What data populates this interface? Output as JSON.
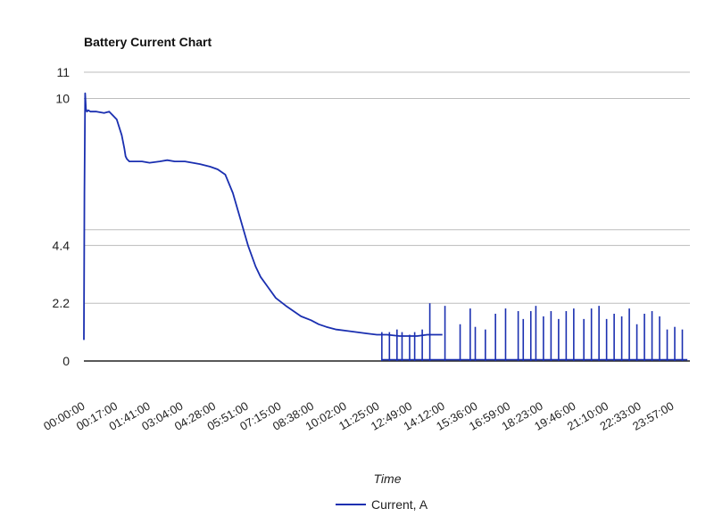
{
  "chart_data": {
    "type": "line",
    "title": "Battery Current Chart",
    "xlabel": "Time",
    "ylabel": "",
    "ylim": [
      0,
      11
    ],
    "y_ticks": [
      "0",
      "2.2",
      "4.4",
      "10",
      "11"
    ],
    "y_tick_values": [
      0,
      2.2,
      4.4,
      10,
      11
    ],
    "x_tick_labels": [
      "00:00:00",
      "00:17:00",
      "01:41:00",
      "03:04:00",
      "04:28:00",
      "05:51:00",
      "07:15:00",
      "08:38:00",
      "10:02:00",
      "11:25:00",
      "12:49:00",
      "14:12:00",
      "15:36:00",
      "16:59:00",
      "18:23:00",
      "19:46:00",
      "21:10:00",
      "22:33:00",
      "23:57:00"
    ],
    "grid": true,
    "legend_position": "bottom",
    "series": [
      {
        "name": "Current, A",
        "color": "#1a2fb0",
        "x_hours": [
          0,
          0.02,
          0.05,
          0.08,
          0.12,
          0.18,
          0.25,
          0.5,
          0.8,
          1.0,
          1.3,
          1.5,
          1.6,
          1.65,
          1.7,
          1.8,
          2.0,
          2.3,
          2.6,
          3.0,
          3.3,
          3.6,
          3.8,
          4.0,
          4.3,
          4.6,
          5.0,
          5.3,
          5.6,
          5.9,
          6.2,
          6.5,
          6.8,
          7.0,
          7.3,
          7.6,
          8.0,
          8.3,
          8.6,
          9.0,
          9.3,
          9.6,
          10.0,
          10.4,
          10.8,
          11.2,
          11.6,
          12.0,
          12.5,
          12.9,
          13.2,
          13.6,
          14.2
        ],
        "values": [
          0.8,
          6.4,
          10.2,
          9.6,
          9.5,
          9.55,
          9.5,
          9.5,
          9.45,
          9.5,
          9.2,
          8.6,
          8.1,
          7.8,
          7.7,
          7.6,
          7.6,
          7.6,
          7.55,
          7.6,
          7.65,
          7.6,
          7.6,
          7.6,
          7.55,
          7.5,
          7.4,
          7.3,
          7.1,
          6.4,
          5.4,
          4.4,
          3.6,
          3.2,
          2.8,
          2.4,
          2.1,
          1.9,
          1.7,
          1.55,
          1.4,
          1.3,
          1.2,
          1.15,
          1.1,
          1.05,
          1.0,
          1.0,
          0.95,
          0.95,
          0.95,
          1.0,
          1.0
        ]
      }
    ],
    "pulse_segment": {
      "description": "",
      "x_start_hours": 11.8,
      "x_end_hours": 23.9,
      "spike_hours": [
        11.8,
        12.1,
        12.4,
        12.6,
        12.9,
        13.1,
        13.4,
        13.7,
        14.3,
        14.9,
        15.3,
        15.5,
        15.9,
        16.3,
        16.7,
        17.2,
        17.4,
        17.7,
        17.9,
        18.2,
        18.5,
        18.8,
        19.1,
        19.4,
        19.8,
        20.1,
        20.4,
        20.7,
        21.0,
        21.3,
        21.6,
        21.9,
        22.2,
        22.5,
        22.8,
        23.1,
        23.4,
        23.7
      ],
      "spike_values": [
        1.1,
        1.1,
        1.2,
        1.1,
        1.0,
        1.1,
        1.2,
        2.2,
        2.1,
        1.4,
        2.0,
        1.3,
        1.2,
        1.8,
        2.0,
        1.9,
        1.6,
        1.9,
        2.1,
        1.7,
        1.9,
        1.6,
        1.9,
        2.0,
        1.6,
        2.0,
        2.1,
        1.6,
        1.8,
        1.7,
        2.0,
        1.4,
        1.8,
        1.9,
        1.7,
        1.2,
        1.3,
        1.2
      ]
    }
  }
}
